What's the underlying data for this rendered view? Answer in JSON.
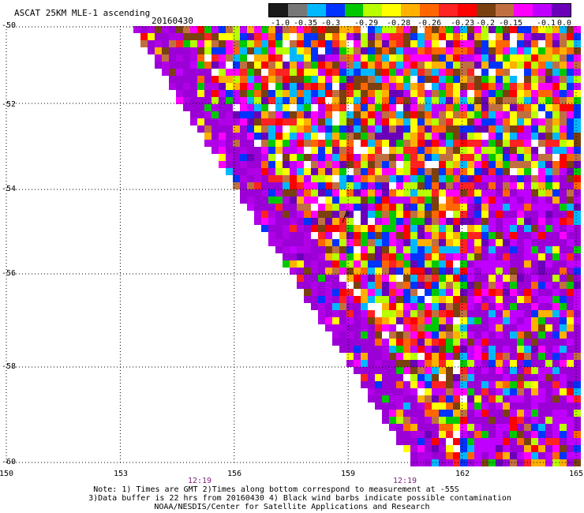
{
  "header": {
    "title": "ASCAT 25KM MLE-1 ascending",
    "date": "20160430"
  },
  "colorbar": {
    "colors": [
      "#1a1a1a",
      "#777777",
      "#00b8ff",
      "#0033ff",
      "#00c800",
      "#b8ff00",
      "#ffff00",
      "#ffb000",
      "#ff6600",
      "#ff2222",
      "#ff0000",
      "#7a4010",
      "#c07040",
      "#ff00ff",
      "#c000ff",
      "#6a00b8"
    ],
    "labels": [
      "-1.0",
      "-0.35",
      "-0.3",
      "-0.29",
      "-0.28",
      "-0.26",
      "-0.23",
      "-0.2",
      "-0.15",
      "-0.1",
      "0.0"
    ]
  },
  "map": {
    "lat_labels": [
      "-50",
      "-52",
      "-54",
      "-56",
      "-58",
      "-60"
    ],
    "lon_labels": [
      "150",
      "153",
      "156",
      "159",
      "162",
      "165"
    ],
    "time_labels": [
      "12:19",
      "12:19"
    ]
  },
  "notes": {
    "line1": "Note: 1) Times are GMT 2)Times along bottom correspond to measurement at -55S",
    "line2": "3)Data buffer is 22 hrs from 20160430 4) Black wind barbs indicate possible contamination",
    "line3": "NOAA/NESDIS/Center for Satellite Applications and Research"
  }
}
